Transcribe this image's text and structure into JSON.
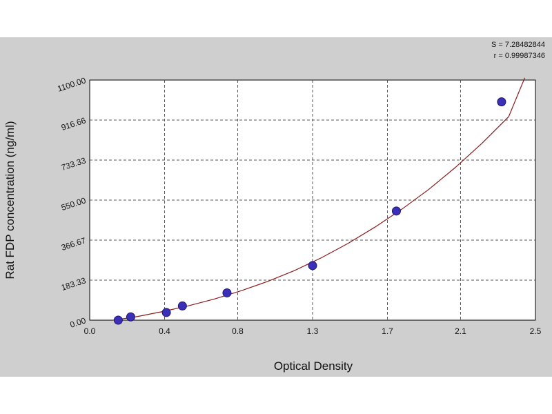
{
  "chart_data": {
    "type": "scatter",
    "title": "",
    "xlabel": "Optical Density",
    "ylabel": "Rat FDP concentration (ng/ml)",
    "xlim": [
      0.0,
      2.5
    ],
    "ylim": [
      0.0,
      1100.0
    ],
    "x_tick_labels": [
      "0.0",
      "0.4",
      "0.8",
      "1.3",
      "1.7",
      "2.1",
      "2.5"
    ],
    "x_tick_values": [
      0.0,
      0.42,
      0.83,
      1.25,
      1.67,
      2.08,
      2.5
    ],
    "y_tick_labels": [
      "0.00",
      "183.33",
      "366.67",
      "550.00",
      "733.33",
      "916.66",
      "1100.00"
    ],
    "y_tick_values": [
      0.0,
      183.33,
      366.67,
      550.0,
      733.33,
      916.66,
      1100.0
    ],
    "grid": true,
    "stats": [
      "S = 7.28482844",
      "r = 0.99987346"
    ],
    "series": [
      {
        "points": [
          {
            "x": 0.16,
            "y": 0
          },
          {
            "x": 0.23,
            "y": 15
          },
          {
            "x": 0.43,
            "y": 35
          },
          {
            "x": 0.52,
            "y": 65
          },
          {
            "x": 0.77,
            "y": 125
          },
          {
            "x": 1.25,
            "y": 250
          },
          {
            "x": 1.72,
            "y": 500
          },
          {
            "x": 2.31,
            "y": 1000
          }
        ],
        "color": "#3b2fb8"
      }
    ],
    "curve": {
      "x": [
        0.13,
        0.25,
        0.4,
        0.55,
        0.7,
        0.85,
        1.0,
        1.15,
        1.3,
        1.45,
        1.6,
        1.75,
        1.9,
        2.05,
        2.2,
        2.35,
        2.44
      ],
      "y": [
        -5,
        14,
        38,
        65,
        97,
        135,
        178,
        228,
        286,
        352,
        426,
        508,
        598,
        699,
        810,
        932,
        1110
      ],
      "color": "#8b1a1a"
    }
  }
}
